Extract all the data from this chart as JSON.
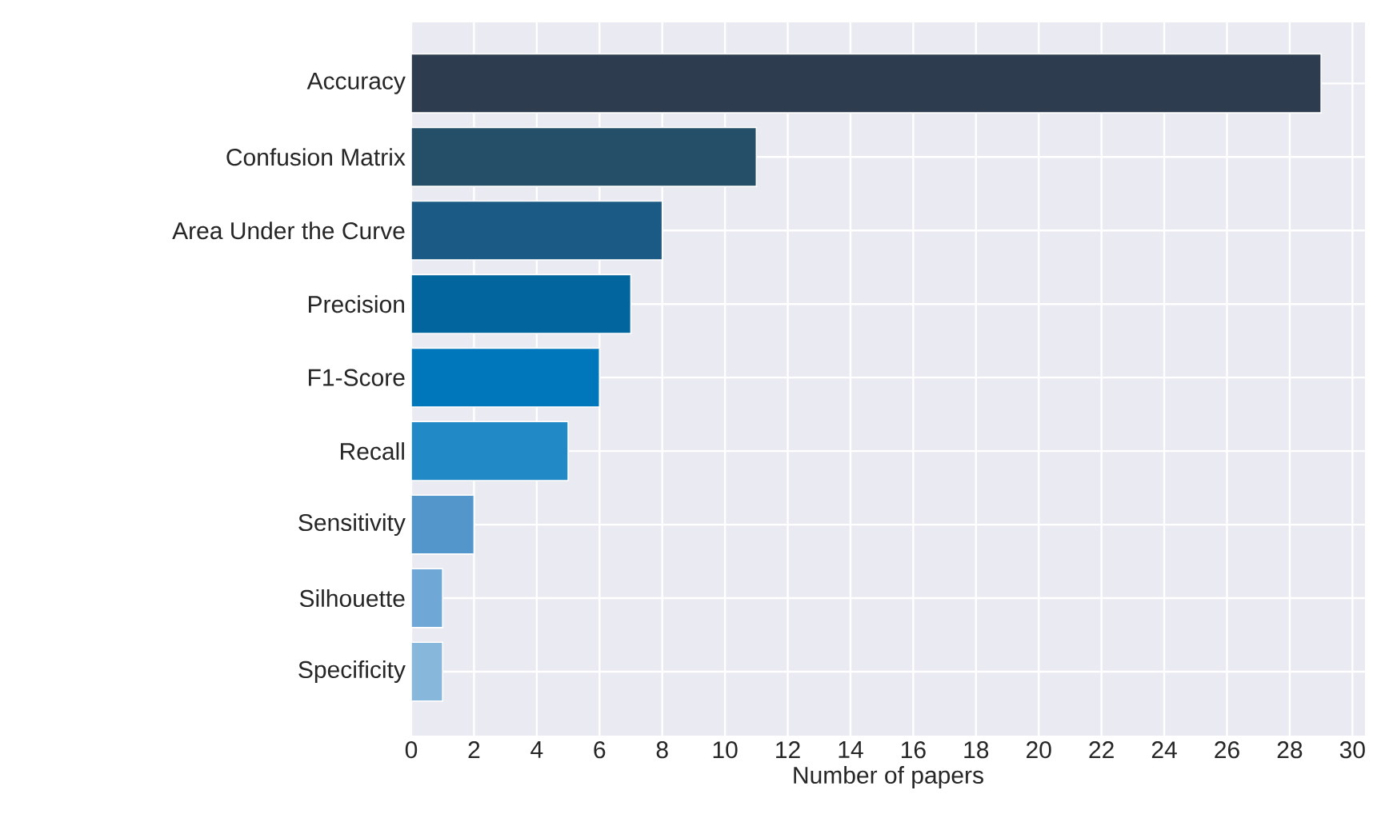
{
  "chart_data": {
    "type": "bar",
    "orientation": "horizontal",
    "xlabel": "Number of papers",
    "categories": [
      "Accuracy",
      "Confusion Matrix",
      "Area Under the Curve",
      "Precision",
      "F1-Score",
      "Recall",
      "Sensitivity",
      "Silhouette",
      "Specificity"
    ],
    "values": [
      29,
      11,
      8,
      7,
      6,
      5,
      2,
      1,
      1
    ],
    "colors": [
      "#2e3c4f",
      "#254f69",
      "#1a5a85",
      "#03659e",
      "#0077bb",
      "#2089c6",
      "#5296cc",
      "#6fa7d7",
      "#88b7dc"
    ],
    "xlim": [
      0,
      30.4
    ],
    "xticks": [
      0,
      2,
      4,
      6,
      8,
      10,
      12,
      14,
      16,
      18,
      20,
      22,
      24,
      26,
      28,
      30
    ],
    "grid": true
  }
}
